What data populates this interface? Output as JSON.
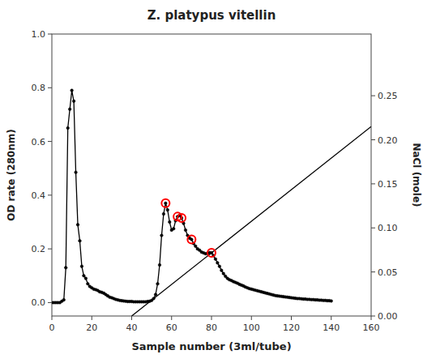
{
  "chart_data": {
    "type": "line",
    "title": "Z. platypus vitellin",
    "x_label": "Sample number (3ml/tube)",
    "y_label": "OD rate (280nm)",
    "y2_label": "NaCl (mole)",
    "xlim": [
      0,
      160
    ],
    "xticks": [
      0,
      20,
      40,
      60,
      80,
      100,
      120,
      140,
      160
    ],
    "ylim": [
      -0.05,
      1.0
    ],
    "yticks": [
      {
        "value": 0.0,
        "label": "0.0"
      },
      0.2,
      0.4,
      0.6,
      0.8,
      {
        "value": 1.0,
        "label": "1.0"
      }
    ],
    "y2lim": [
      0.0,
      0.32
    ],
    "y2ticks": [
      {
        "value": 0.0,
        "label": "0.00"
      },
      0.05,
      {
        "value": 0.1,
        "label": "0.10"
      },
      0.15,
      {
        "value": 0.2,
        "label": "0.20"
      },
      0.25
    ],
    "grid": false,
    "series": [
      {
        "type": "line",
        "color": "black",
        "marker": "circle",
        "x": [
          0,
          1,
          2,
          3,
          4,
          5,
          6,
          7,
          8,
          9,
          10,
          11,
          12,
          13,
          14,
          15,
          16,
          17,
          18,
          19,
          20,
          21,
          22,
          23,
          24,
          25,
          26,
          27,
          28,
          29,
          30,
          31,
          32,
          33,
          34,
          35,
          36,
          37,
          38,
          39,
          40,
          41,
          42,
          43,
          44,
          45,
          46,
          47,
          48,
          49,
          50,
          51,
          52,
          53,
          54,
          55,
          56,
          57,
          58,
          59,
          60,
          61,
          62,
          63,
          64,
          65,
          66,
          67,
          68,
          69,
          70,
          71,
          72,
          73,
          74,
          75,
          76,
          77,
          78,
          79,
          80,
          81,
          82,
          83,
          84,
          85,
          86,
          87,
          88,
          89,
          90,
          91,
          92,
          93,
          94,
          95,
          96,
          97,
          98,
          99,
          100,
          101,
          102,
          103,
          104,
          105,
          106,
          107,
          108,
          109,
          110,
          111,
          112,
          113,
          114,
          115,
          116,
          117,
          118,
          119,
          120,
          121,
          122,
          123,
          124,
          125,
          126,
          127,
          128,
          129,
          130,
          131,
          132,
          133,
          134,
          135,
          136,
          137,
          138,
          139,
          140
        ],
        "values": [
          0.0,
          0.0,
          0.0,
          0.0,
          0.0,
          0.005,
          0.01,
          0.13,
          0.65,
          0.72,
          0.79,
          0.75,
          0.485,
          0.29,
          0.23,
          0.135,
          0.1,
          0.09,
          0.07,
          0.06,
          0.055,
          0.05,
          0.048,
          0.045,
          0.04,
          0.038,
          0.035,
          0.03,
          0.025,
          0.02,
          0.018,
          0.015,
          0.012,
          0.01,
          0.008,
          0.007,
          0.006,
          0.005,
          0.004,
          0.004,
          0.004,
          0.003,
          0.003,
          0.003,
          0.003,
          0.003,
          0.003,
          0.003,
          0.004,
          0.005,
          0.008,
          0.015,
          0.03,
          0.07,
          0.14,
          0.25,
          0.33,
          0.37,
          0.345,
          0.3,
          0.27,
          0.275,
          0.305,
          0.32,
          0.325,
          0.315,
          0.295,
          0.27,
          0.25,
          0.24,
          0.235,
          0.22,
          0.21,
          0.2,
          0.195,
          0.188,
          0.185,
          0.182,
          0.183,
          0.186,
          0.185,
          0.175,
          0.162,
          0.148,
          0.135,
          0.12,
          0.108,
          0.098,
          0.09,
          0.085,
          0.082,
          0.078,
          0.075,
          0.072,
          0.068,
          0.065,
          0.062,
          0.058,
          0.055,
          0.052,
          0.05,
          0.048,
          0.046,
          0.044,
          0.042,
          0.04,
          0.038,
          0.036,
          0.034,
          0.032,
          0.03,
          0.028,
          0.026,
          0.025,
          0.024,
          0.023,
          0.022,
          0.021,
          0.02,
          0.019,
          0.018,
          0.017,
          0.016,
          0.015,
          0.015,
          0.014,
          0.013,
          0.013,
          0.012,
          0.012,
          0.011,
          0.011,
          0.01,
          0.01,
          0.009,
          0.009,
          0.008,
          0.008,
          0.007,
          0.007,
          0.006
        ]
      },
      {
        "type": "line",
        "color": "black",
        "axis": "y2",
        "x": [
          40,
          160
        ],
        "values": [
          0.0,
          0.215
        ]
      },
      {
        "type": "scatter",
        "color": "red",
        "marker": "open-circle",
        "x": [
          57,
          63,
          65,
          70,
          80
        ],
        "values": [
          0.37,
          0.32,
          0.315,
          0.235,
          0.185
        ]
      }
    ]
  }
}
